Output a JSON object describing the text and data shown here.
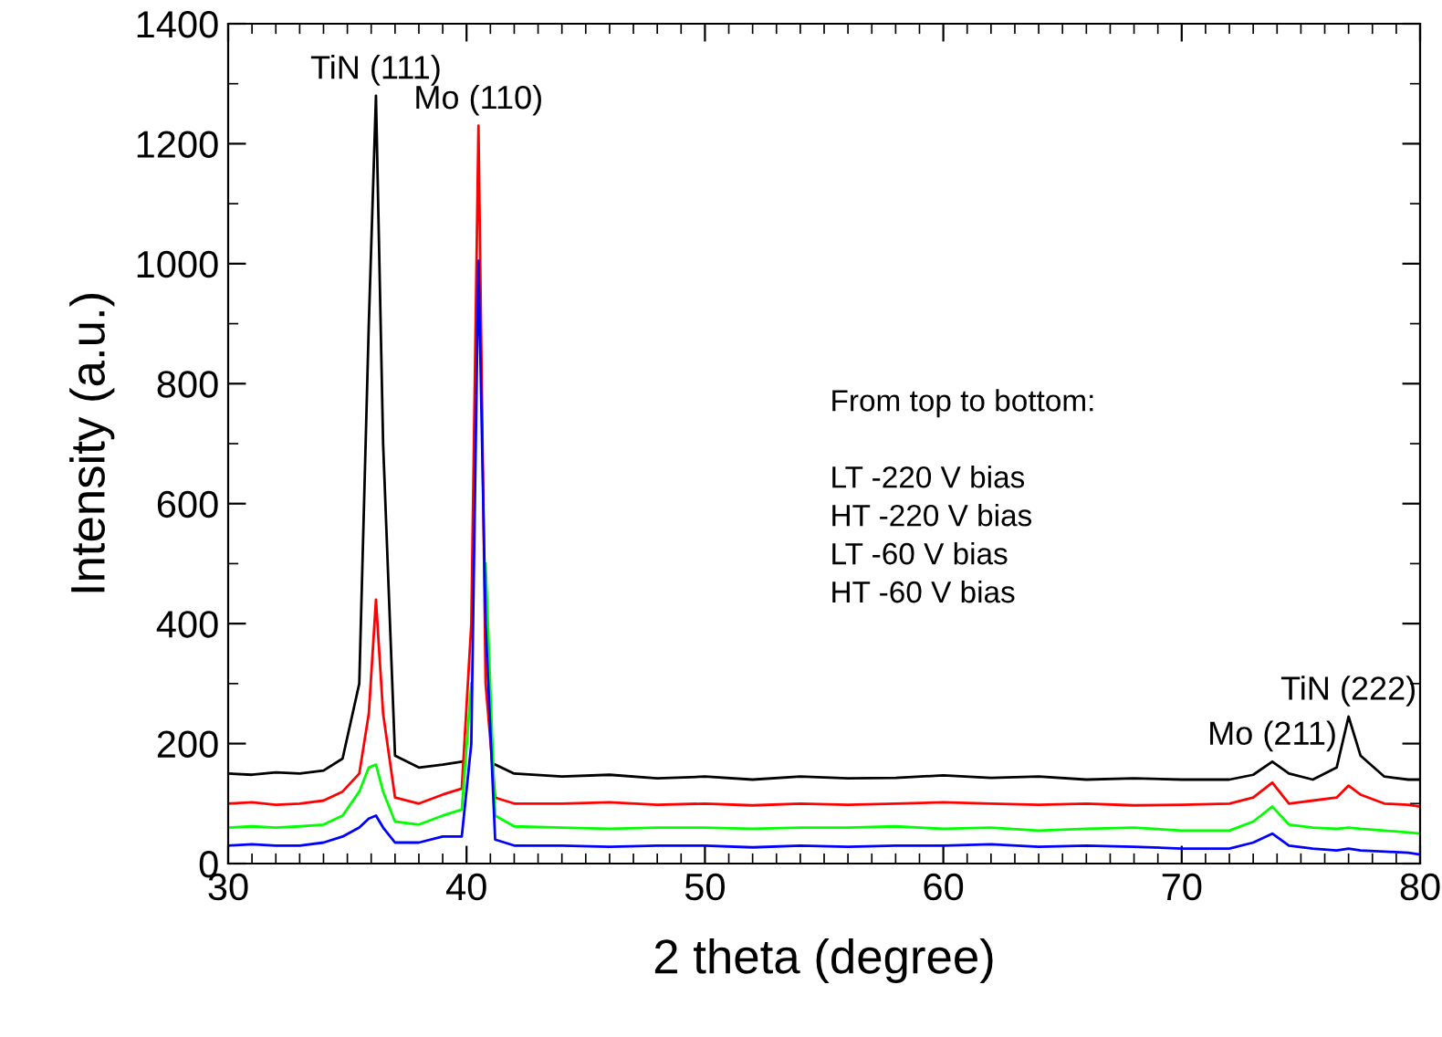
{
  "chart_data": {
    "type": "line",
    "xlabel": "2 theta (degree)",
    "ylabel": "Intensity (a.u.)",
    "x": [
      30,
      31,
      32,
      33,
      34,
      34.8,
      35.5,
      35.9,
      36.2,
      36.5,
      37,
      38,
      39,
      39.8,
      40.2,
      40.5,
      40.8,
      41.2,
      42,
      44,
      46,
      48,
      50,
      52,
      54,
      56,
      58,
      60,
      62,
      64,
      66,
      68,
      70,
      72,
      73,
      73.8,
      74.5,
      75.5,
      76.5,
      77,
      77.5,
      78.5,
      79.5,
      80
    ],
    "series": [
      {
        "color": "#000000",
        "values": [
          150,
          148,
          152,
          150,
          155,
          175,
          300,
          900,
          1280,
          700,
          180,
          160,
          165,
          170,
          null,
          null,
          null,
          165,
          150,
          145,
          148,
          142,
          145,
          140,
          145,
          142,
          143,
          147,
          143,
          145,
          140,
          142,
          140,
          140,
          148,
          170,
          150,
          140,
          160,
          245,
          180,
          145,
          140,
          140
        ]
      },
      {
        "color": "#ff0000",
        "values": [
          100,
          102,
          98,
          100,
          105,
          120,
          150,
          250,
          440,
          250,
          110,
          100,
          115,
          125,
          400,
          1230,
          300,
          110,
          100,
          100,
          102,
          98,
          100,
          97,
          100,
          98,
          100,
          102,
          100,
          98,
          100,
          97,
          98,
          100,
          110,
          135,
          100,
          105,
          110,
          130,
          115,
          100,
          98,
          95
        ]
      },
      {
        "color": "#00ff00",
        "values": [
          60,
          62,
          60,
          62,
          65,
          80,
          120,
          160,
          165,
          120,
          70,
          65,
          80,
          90,
          300,
          null,
          500,
          80,
          62,
          60,
          58,
          60,
          60,
          58,
          60,
          60,
          62,
          58,
          60,
          55,
          58,
          60,
          55,
          55,
          70,
          95,
          65,
          60,
          58,
          60,
          58,
          55,
          52,
          50
        ]
      },
      {
        "color": "#0000ff",
        "values": [
          30,
          32,
          30,
          30,
          35,
          45,
          60,
          75,
          80,
          60,
          35,
          35,
          45,
          45,
          200,
          1005,
          400,
          40,
          30,
          30,
          28,
          30,
          30,
          27,
          30,
          28,
          30,
          30,
          32,
          28,
          30,
          28,
          25,
          25,
          35,
          50,
          30,
          25,
          22,
          25,
          22,
          20,
          18,
          15
        ]
      }
    ],
    "xlim": [
      30,
      80
    ],
    "xticks": [
      30,
      40,
      50,
      60,
      70,
      80
    ],
    "ylim": [
      0,
      1400
    ],
    "yticks": [
      0,
      200,
      400,
      600,
      800,
      1000,
      1200,
      1400
    ],
    "grid": false,
    "legend": false,
    "annotations": [
      {
        "text": "TiN (111)",
        "x": 36.2,
        "y": 1280
      },
      {
        "text": "Mo (110)",
        "x": 40.5,
        "y": 1230
      },
      {
        "text": "Mo (211)",
        "x": 73.8,
        "y": 170
      },
      {
        "text": "TiN (222)",
        "x": 77,
        "y": 245
      },
      "From top to bottom:\n\nLT -220 V bias\nHT -220 V bias\nLT -60 V bias\nHT -60 V bias"
    ]
  }
}
